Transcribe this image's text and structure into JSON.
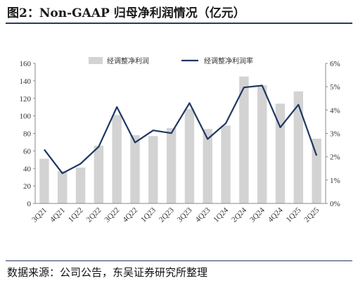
{
  "header": {
    "title": "图2：Non-GAAP 归母净利润情况（亿元）"
  },
  "footer": {
    "source": "数据来源：公司公告，东吴证券研究所整理"
  },
  "chart_data": {
    "type": "bar",
    "categories": [
      "3Q21",
      "4Q21",
      "1Q22",
      "2Q22",
      "3Q22",
      "4Q22",
      "1Q23",
      "2Q23",
      "3Q23",
      "4Q23",
      "1Q24",
      "2Q24",
      "3Q24",
      "4Q24",
      "1Q25",
      "2Q25"
    ],
    "series": [
      {
        "name": "经调整净利润",
        "type": "bar",
        "axis": "left",
        "values": [
          51,
          37,
          41,
          66,
          101,
          78,
          77,
          86,
          108,
          85,
          89,
          145,
          135,
          114,
          128,
          74
        ]
      },
      {
        "name": "经调整净利润率",
        "type": "line",
        "axis": "right",
        "unit": "%",
        "values": [
          2.31,
          1.29,
          1.7,
          2.43,
          4.13,
          2.61,
          3.13,
          3.01,
          4.3,
          2.76,
          3.43,
          4.97,
          5.05,
          3.26,
          4.23,
          2.05
        ]
      }
    ],
    "y_left": {
      "ylim": [
        0,
        160
      ],
      "ticks": [
        "0",
        "20",
        "40",
        "60",
        "80",
        "100",
        "120",
        "140",
        "160"
      ]
    },
    "y_right": {
      "ylim": [
        0,
        6
      ],
      "ticks": [
        "0%",
        "1%",
        "2%",
        "3%",
        "4%",
        "5%",
        "6%"
      ]
    },
    "colors": {
      "bar": "#d3d3d3",
      "line": "#1f3864"
    },
    "legend_position": "top",
    "grid": false
  }
}
